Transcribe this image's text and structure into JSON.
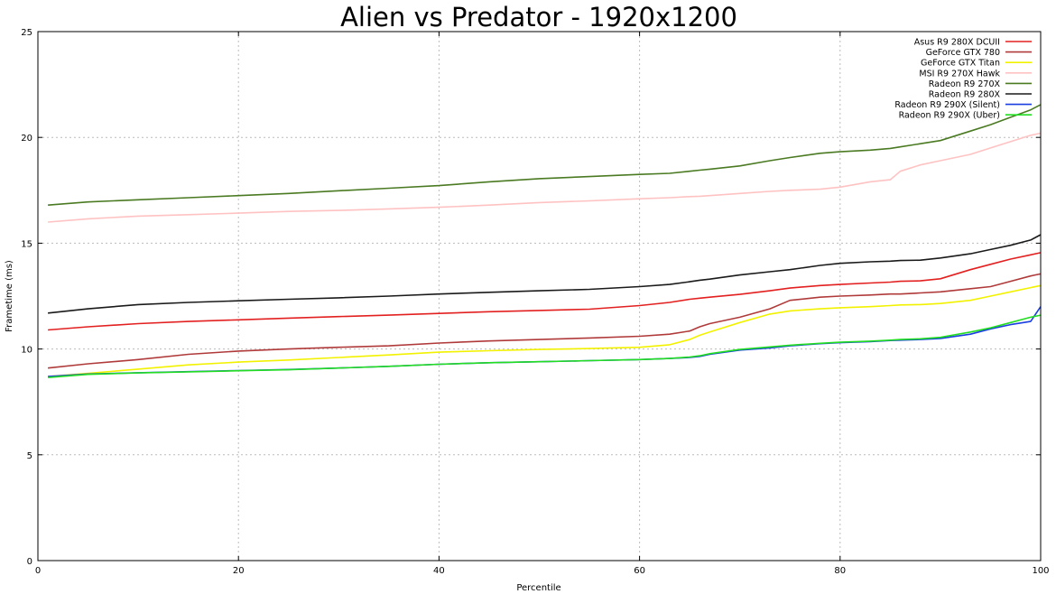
{
  "chart_data": {
    "type": "line",
    "title": "Alien vs Predator - 1920x1200",
    "xlabel": "Percentile",
    "ylabel": "Frametime (ms)",
    "xlim": [
      0,
      100
    ],
    "ylim": [
      0,
      25
    ],
    "xticks": [
      0,
      20,
      40,
      60,
      80,
      100
    ],
    "yticks": [
      0,
      5,
      10,
      15,
      20,
      25
    ],
    "grid": true,
    "legend_position": "top-right",
    "x": [
      1,
      5,
      10,
      15,
      20,
      25,
      30,
      35,
      40,
      45,
      50,
      55,
      60,
      63,
      65,
      66,
      67,
      70,
      73,
      75,
      78,
      80,
      83,
      85,
      86,
      88,
      90,
      93,
      95,
      97,
      99,
      100
    ],
    "series": [
      {
        "name": "Asus R9 280X DCUII",
        "color": "#e32020",
        "values": [
          10.9,
          11.05,
          11.2,
          11.3,
          11.38,
          11.46,
          11.53,
          11.6,
          11.68,
          11.76,
          11.82,
          11.88,
          12.05,
          12.2,
          12.35,
          12.4,
          12.45,
          12.58,
          12.75,
          12.88,
          13.0,
          13.05,
          13.12,
          13.16,
          13.2,
          13.22,
          13.32,
          13.75,
          14.0,
          14.25,
          14.45,
          14.55
        ]
      },
      {
        "name": "GeForce GTX 780",
        "color": "#b03a3a",
        "values": [
          9.1,
          9.3,
          9.5,
          9.75,
          9.9,
          10.0,
          10.08,
          10.15,
          10.28,
          10.38,
          10.45,
          10.52,
          10.6,
          10.7,
          10.85,
          11.05,
          11.2,
          11.5,
          11.9,
          12.3,
          12.45,
          12.5,
          12.55,
          12.6,
          12.6,
          12.65,
          12.7,
          12.85,
          12.95,
          13.2,
          13.45,
          13.55
        ]
      },
      {
        "name": "GeForce GTX Titan",
        "color": "#f2f200",
        "values": [
          8.7,
          8.85,
          9.05,
          9.25,
          9.38,
          9.48,
          9.6,
          9.72,
          9.85,
          9.92,
          9.98,
          10.02,
          10.08,
          10.2,
          10.45,
          10.65,
          10.8,
          11.25,
          11.65,
          11.8,
          11.9,
          11.95,
          12.0,
          12.05,
          12.08,
          12.1,
          12.15,
          12.3,
          12.5,
          12.7,
          12.9,
          13.0
        ]
      },
      {
        "name": "MSI R9 270X Hawk",
        "color": "#ffc2c2",
        "values": [
          16.0,
          16.15,
          16.28,
          16.35,
          16.42,
          16.5,
          16.55,
          16.62,
          16.7,
          16.8,
          16.92,
          17.0,
          17.1,
          17.15,
          17.2,
          17.22,
          17.25,
          17.35,
          17.45,
          17.5,
          17.55,
          17.65,
          17.9,
          18.0,
          18.4,
          18.7,
          18.9,
          19.2,
          19.5,
          19.8,
          20.1,
          20.2
        ]
      },
      {
        "name": "Radeon R9 270X",
        "color": "#4a7a22",
        "values": [
          16.8,
          16.95,
          17.05,
          17.15,
          17.25,
          17.35,
          17.48,
          17.6,
          17.72,
          17.9,
          18.05,
          18.15,
          18.25,
          18.3,
          18.4,
          18.45,
          18.5,
          18.65,
          18.9,
          19.05,
          19.25,
          19.32,
          19.4,
          19.48,
          19.55,
          19.7,
          19.85,
          20.3,
          20.6,
          20.95,
          21.3,
          21.55
        ]
      },
      {
        "name": "Radeon R9 280X",
        "color": "#1a1a1a",
        "values": [
          11.7,
          11.9,
          12.1,
          12.2,
          12.28,
          12.35,
          12.42,
          12.5,
          12.6,
          12.68,
          12.75,
          12.82,
          12.95,
          13.05,
          13.18,
          13.25,
          13.3,
          13.5,
          13.65,
          13.75,
          13.95,
          14.05,
          14.12,
          14.15,
          14.18,
          14.2,
          14.3,
          14.5,
          14.7,
          14.9,
          15.15,
          15.4
        ]
      },
      {
        "name": "Radeon R9 290X (Silent)",
        "color": "#1a3ee0",
        "values": [
          8.7,
          8.82,
          8.88,
          8.93,
          8.98,
          9.03,
          9.1,
          9.18,
          9.28,
          9.35,
          9.4,
          9.45,
          9.5,
          9.55,
          9.6,
          9.65,
          9.75,
          9.95,
          10.05,
          10.15,
          10.25,
          10.3,
          10.35,
          10.4,
          10.42,
          10.45,
          10.5,
          10.7,
          10.95,
          11.15,
          11.3,
          12.0
        ]
      },
      {
        "name": "Radeon R9 290X (Uber)",
        "color": "#22dd22",
        "values": [
          8.65,
          8.8,
          8.87,
          8.92,
          8.97,
          9.02,
          9.1,
          9.18,
          9.28,
          9.35,
          9.4,
          9.45,
          9.5,
          9.55,
          9.62,
          9.68,
          9.78,
          9.98,
          10.1,
          10.18,
          10.27,
          10.32,
          10.37,
          10.42,
          10.45,
          10.48,
          10.55,
          10.8,
          11.0,
          11.25,
          11.5,
          11.6
        ]
      }
    ]
  }
}
